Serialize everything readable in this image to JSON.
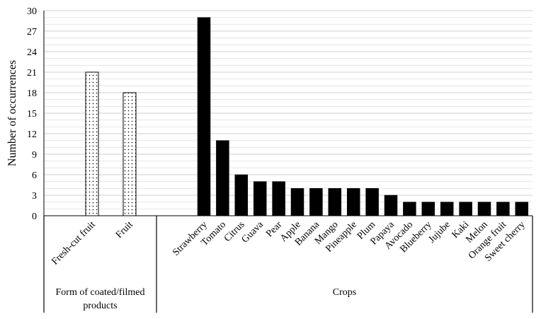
{
  "chart_data": {
    "type": "bar",
    "ylabel": "Number of occurrences",
    "ylim": [
      0,
      30
    ],
    "yticks": [
      0,
      3,
      6,
      9,
      12,
      15,
      18,
      21,
      24,
      27,
      30
    ],
    "grid": true,
    "legend": "none",
    "groups": [
      {
        "label": "Form of coated/filmed products",
        "label_lines": [
          "Form of coated/filmed",
          "products"
        ],
        "pattern": "dotted",
        "categories": [
          "Fresh-cut fruit",
          "Fruit"
        ],
        "values": [
          21,
          18
        ]
      },
      {
        "label": "Crops",
        "label_lines": [
          "Crops"
        ],
        "pattern": "solid",
        "categories": [
          "Strawberry",
          "Tomato",
          "Citrus",
          "Guava",
          "Pear",
          "Apple",
          "Banana",
          "Mango",
          "Pineapple",
          "Plum",
          "Papaya",
          "Avocado",
          "Blueberry",
          "Jujube",
          "Kaki",
          "Melon",
          "Orange fruit",
          "Sweet cherry"
        ],
        "values": [
          29,
          11,
          6,
          5,
          5,
          4,
          4,
          4,
          4,
          4,
          3,
          2,
          2,
          2,
          2,
          2,
          2,
          2
        ]
      }
    ],
    "colors": {
      "solid_bar": "#000000",
      "dotted_bar_fill": "#ffffff",
      "grid": "#d9d9d9",
      "axis": "#000000"
    }
  }
}
